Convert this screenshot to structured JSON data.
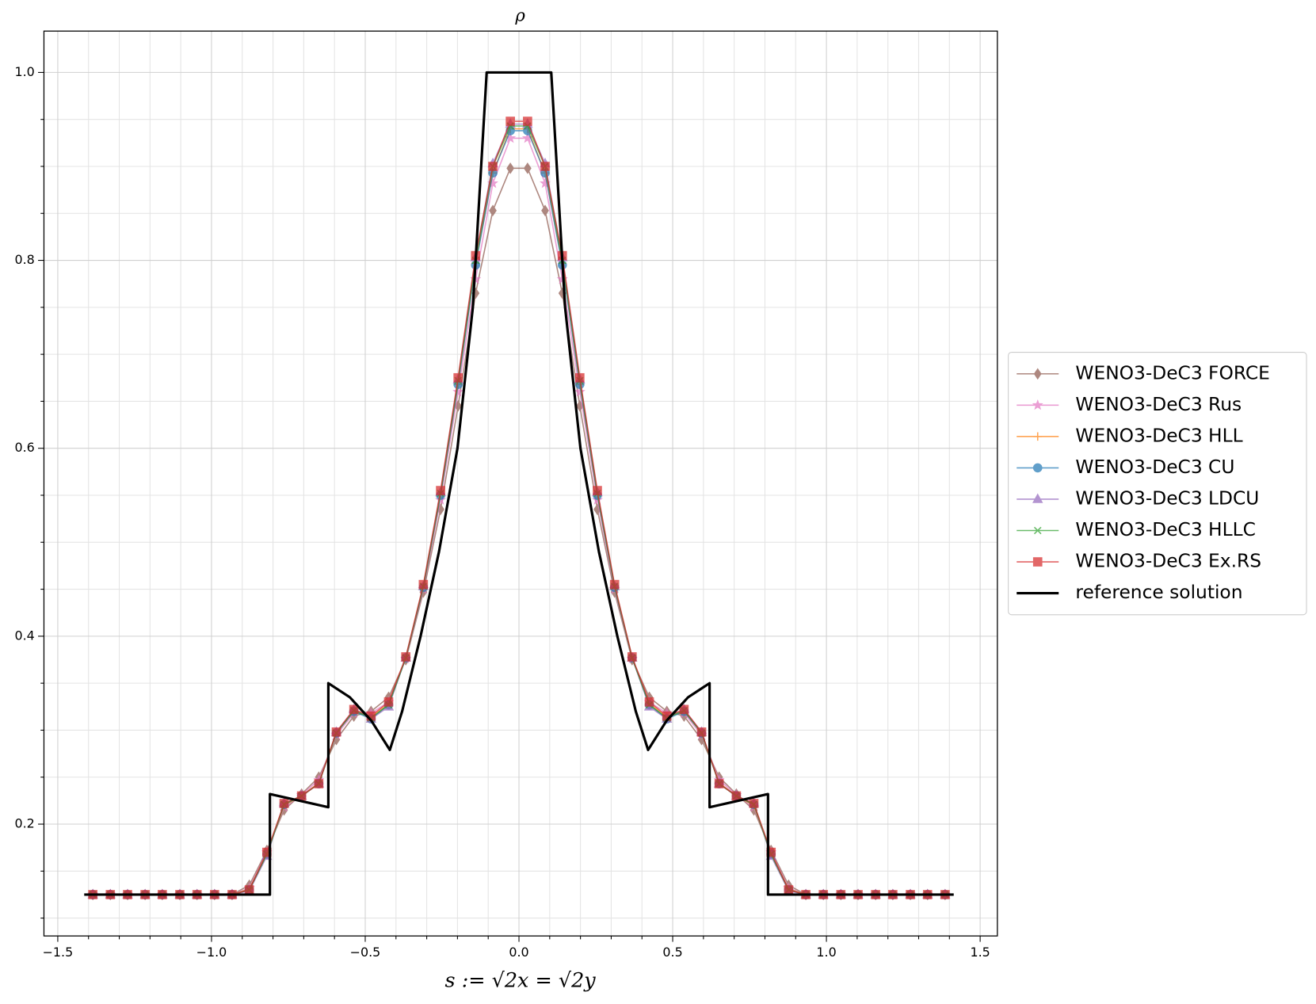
{
  "chart_data": {
    "type": "line",
    "title": "ρ",
    "x_label": "s := √2x = √2y",
    "xlim": [
      -1.545,
      1.556
    ],
    "ylim": [
      0.081,
      1.044
    ],
    "xticks": [
      {
        "value": -1.5,
        "label": "−1.5"
      },
      {
        "value": -1.0,
        "label": "−1.0"
      },
      {
        "value": -0.5,
        "label": "−0.5"
      },
      {
        "value": 0,
        "label": "0.0"
      },
      0.5,
      {
        "value": 1.0,
        "label": "1.0"
      },
      1.5
    ],
    "yticks": [
      0.2,
      0.4,
      0.6,
      0.8,
      {
        "value": 1.0,
        "label": "1.0"
      }
    ],
    "xminorticks": [
      -1.4,
      -1.3,
      -1.2,
      -1.1,
      -0.9,
      -0.8,
      -0.7,
      -0.6,
      -0.4,
      -0.3,
      -0.2,
      -0.1,
      0.1,
      0.2,
      0.3,
      0.4,
      0.6,
      0.7,
      0.8,
      0.9,
      1.1,
      1.2,
      1.3,
      1.4
    ],
    "yminorticks": [
      0.1,
      0.15,
      0.25,
      0.3,
      0.35,
      0.45,
      0.5,
      0.55,
      0.65,
      0.7,
      0.75,
      0.85,
      0.9,
      0.95
    ],
    "grid": true,
    "legend": "center right outside",
    "x": [
      -1.386,
      -1.329,
      -1.273,
      -1.216,
      -1.16,
      -1.103,
      -1.047,
      -0.99,
      -0.933,
      -0.877,
      -0.82,
      -0.764,
      -0.707,
      -0.651,
      -0.594,
      -0.537,
      -0.481,
      -0.424,
      -0.368,
      -0.311,
      -0.255,
      -0.198,
      -0.141,
      -0.085,
      -0.028,
      0.028,
      0.085,
      0.141,
      0.198,
      0.255,
      0.311,
      0.368,
      0.424,
      0.481,
      0.537,
      0.594,
      0.651,
      0.707,
      0.764,
      0.82,
      0.877,
      0.933,
      0.99,
      1.047,
      1.103,
      1.16,
      1.216,
      1.273,
      1.329,
      1.386
    ],
    "series": [
      {
        "name": "WENO3-DeC3 FORCE",
        "color": "#8c564b",
        "marker": "diamond",
        "values": [
          0.125,
          0.125,
          0.125,
          0.125,
          0.125,
          0.125,
          0.125,
          0.125,
          0.125,
          0.135,
          0.172,
          0.215,
          0.232,
          0.25,
          0.29,
          0.315,
          0.32,
          0.335,
          0.375,
          0.447,
          0.535,
          0.645,
          0.765,
          0.853,
          0.898,
          0.898,
          0.853,
          0.765,
          0.645,
          0.535,
          0.447,
          0.375,
          0.335,
          0.32,
          0.315,
          0.29,
          0.25,
          0.232,
          0.215,
          0.172,
          0.135,
          0.125,
          0.125,
          0.125,
          0.125,
          0.125,
          0.125,
          0.125,
          0.125,
          0.125
        ]
      },
      {
        "name": "WENO3-DeC3 Rus",
        "color": "#e377c2",
        "marker": "star",
        "values": [
          0.125,
          0.125,
          0.125,
          0.125,
          0.125,
          0.125,
          0.125,
          0.125,
          0.125,
          0.132,
          0.17,
          0.218,
          0.231,
          0.247,
          0.295,
          0.318,
          0.318,
          0.33,
          0.376,
          0.45,
          0.545,
          0.66,
          0.78,
          0.882,
          0.93,
          0.93,
          0.882,
          0.78,
          0.66,
          0.545,
          0.45,
          0.376,
          0.33,
          0.318,
          0.318,
          0.295,
          0.247,
          0.231,
          0.218,
          0.17,
          0.132,
          0.125,
          0.125,
          0.125,
          0.125,
          0.125,
          0.125,
          0.125,
          0.125,
          0.125
        ]
      },
      {
        "name": "WENO3-DeC3 HLL",
        "color": "#ff7f0e",
        "marker": "plus",
        "values": [
          0.125,
          0.125,
          0.125,
          0.125,
          0.125,
          0.125,
          0.125,
          0.125,
          0.125,
          0.131,
          0.168,
          0.22,
          0.23,
          0.244,
          0.297,
          0.32,
          0.314,
          0.328,
          0.377,
          0.452,
          0.55,
          0.668,
          0.797,
          0.893,
          0.94,
          0.94,
          0.893,
          0.797,
          0.668,
          0.55,
          0.452,
          0.377,
          0.328,
          0.314,
          0.32,
          0.297,
          0.244,
          0.23,
          0.22,
          0.168,
          0.131,
          0.125,
          0.125,
          0.125,
          0.125,
          0.125,
          0.125,
          0.125,
          0.125,
          0.125
        ]
      },
      {
        "name": "WENO3-DeC3 CU",
        "color": "#1f77b4",
        "marker": "circle",
        "values": [
          0.125,
          0.125,
          0.125,
          0.125,
          0.125,
          0.125,
          0.125,
          0.125,
          0.125,
          0.13,
          0.168,
          0.221,
          0.23,
          0.243,
          0.297,
          0.32,
          0.312,
          0.327,
          0.377,
          0.452,
          0.55,
          0.668,
          0.795,
          0.893,
          0.938,
          0.938,
          0.893,
          0.795,
          0.668,
          0.55,
          0.452,
          0.377,
          0.327,
          0.312,
          0.32,
          0.297,
          0.243,
          0.23,
          0.221,
          0.168,
          0.13,
          0.125,
          0.125,
          0.125,
          0.125,
          0.125,
          0.125,
          0.125,
          0.125,
          0.125
        ]
      },
      {
        "name": "WENO3-DeC3 LDCU",
        "color": "#9467bd",
        "marker": "triangle",
        "values": [
          0.125,
          0.125,
          0.125,
          0.125,
          0.125,
          0.125,
          0.125,
          0.125,
          0.125,
          0.129,
          0.166,
          0.222,
          0.23,
          0.243,
          0.298,
          0.322,
          0.312,
          0.325,
          0.377,
          0.453,
          0.553,
          0.673,
          0.803,
          0.903,
          0.945,
          0.945,
          0.903,
          0.803,
          0.673,
          0.553,
          0.453,
          0.377,
          0.325,
          0.312,
          0.322,
          0.298,
          0.243,
          0.23,
          0.222,
          0.166,
          0.129,
          0.125,
          0.125,
          0.125,
          0.125,
          0.125,
          0.125,
          0.125,
          0.125,
          0.125
        ]
      },
      {
        "name": "WENO3-DeC3 HLLC",
        "color": "#2ca02c",
        "marker": "x",
        "values": [
          0.125,
          0.125,
          0.125,
          0.125,
          0.125,
          0.125,
          0.125,
          0.125,
          0.125,
          0.13,
          0.168,
          0.221,
          0.23,
          0.243,
          0.297,
          0.321,
          0.313,
          0.327,
          0.377,
          0.453,
          0.552,
          0.672,
          0.8,
          0.9,
          0.943,
          0.943,
          0.9,
          0.8,
          0.672,
          0.552,
          0.453,
          0.377,
          0.327,
          0.313,
          0.321,
          0.297,
          0.243,
          0.23,
          0.221,
          0.168,
          0.13,
          0.125,
          0.125,
          0.125,
          0.125,
          0.125,
          0.125,
          0.125,
          0.125,
          0.125
        ]
      },
      {
        "name": "WENO3-DeC3 Ex.RS",
        "color": "#d62728",
        "marker": "square",
        "values": [
          0.125,
          0.125,
          0.125,
          0.125,
          0.125,
          0.125,
          0.125,
          0.125,
          0.125,
          0.13,
          0.17,
          0.222,
          0.23,
          0.243,
          0.298,
          0.322,
          0.315,
          0.33,
          0.378,
          0.455,
          0.555,
          0.675,
          0.805,
          0.9,
          0.948,
          0.948,
          0.9,
          0.805,
          0.675,
          0.555,
          0.455,
          0.378,
          0.33,
          0.315,
          0.322,
          0.298,
          0.243,
          0.23,
          0.222,
          0.17,
          0.13,
          0.125,
          0.125,
          0.125,
          0.125,
          0.125,
          0.125,
          0.125,
          0.125,
          0.125
        ]
      },
      {
        "name": "reference solution",
        "color": "#000000",
        "marker": "none",
        "x": [
          -1.414,
          -0.81,
          -0.81,
          -0.62,
          -0.62,
          -0.55,
          -0.48,
          -0.42,
          -0.38,
          -0.32,
          -0.26,
          -0.2,
          -0.15,
          -0.105,
          0.105,
          0.15,
          0.2,
          0.26,
          0.32,
          0.38,
          0.42,
          0.48,
          0.55,
          0.62,
          0.62,
          0.81,
          0.81,
          1.414
        ],
        "values": [
          0.125,
          0.125,
          0.232,
          0.218,
          0.35,
          0.335,
          0.31,
          0.279,
          0.32,
          0.4,
          0.49,
          0.6,
          0.75,
          1.0,
          1.0,
          0.75,
          0.6,
          0.49,
          0.4,
          0.32,
          0.279,
          0.31,
          0.335,
          0.35,
          0.218,
          0.232,
          0.125,
          0.125
        ]
      }
    ]
  }
}
